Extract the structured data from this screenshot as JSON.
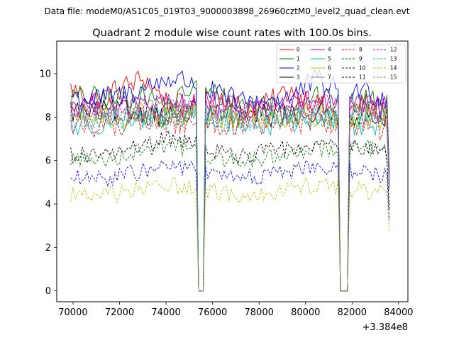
{
  "chart_data": {
    "type": "line",
    "supertitle": "Data file: modeM0/AS1C05_019T03_9000003898_26960cztM0_level2_quad_clean.evt",
    "title": "Quadrant 2 module wise count rates with 100.0s bins.",
    "xlabel": "",
    "ylabel": "",
    "x_offset_label": "+3.384e8",
    "xlim": [
      69300,
      84400
    ],
    "ylim": [
      -0.5,
      11.5
    ],
    "x_ticks": [
      70000,
      72000,
      74000,
      76000,
      78000,
      80000,
      82000,
      84000
    ],
    "x_tick_labels": [
      "70000",
      "72000",
      "74000",
      "76000",
      "78000",
      "80000",
      "82000",
      "84000"
    ],
    "y_ticks": [
      0,
      2,
      4,
      6,
      8,
      10
    ],
    "y_tick_labels": [
      "0",
      "2",
      "4",
      "6",
      "8",
      "10"
    ],
    "legend_location": "upper right",
    "legend_columns": 4,
    "time_start": 69900,
    "time_end": 83600,
    "bin_size": 100,
    "gaps": [
      [
        75300,
        75700
      ],
      [
        81400,
        81900
      ]
    ],
    "series": [
      {
        "name": "0",
        "color": "#ff0000",
        "style": "solid",
        "mean": 8.9,
        "trend": [
          9.3,
          8.8,
          9.3,
          9.8,
          8.6,
          8.5,
          9.1,
          8.4,
          8.6,
          9.3,
          8.6,
          8.0,
          8.6,
          8.2
        ]
      },
      {
        "name": "1",
        "color": "#008000",
        "style": "solid",
        "mean": 8.9,
        "trend": [
          8.9,
          8.9,
          8.8,
          9.0,
          8.5,
          9.4,
          9.0,
          8.6,
          8.6,
          8.5,
          9.1,
          8.5,
          8.8,
          8.6
        ]
      },
      {
        "name": "2",
        "color": "#0000ff",
        "style": "solid",
        "mean": 9.0,
        "trend": [
          9.0,
          8.8,
          9.0,
          9.3,
          9.8,
          9.6,
          9.0,
          8.7,
          8.8,
          8.9,
          9.7,
          9.2,
          9.2,
          8.8
        ]
      },
      {
        "name": "3",
        "color": "#000000",
        "style": "solid",
        "mean": 8.3,
        "trend": [
          8.3,
          8.2,
          8.3,
          8.2,
          8.0,
          8.2,
          8.1,
          8.0,
          8.1,
          8.1,
          8.2,
          8.0,
          8.2,
          8.1
        ]
      },
      {
        "name": "4",
        "color": "#bf00bf",
        "style": "solid",
        "mean": 8.5,
        "trend": [
          8.5,
          8.6,
          8.4,
          8.6,
          8.5,
          8.7,
          8.5,
          8.4,
          8.5,
          8.6,
          8.8,
          8.5,
          8.5,
          8.4
        ]
      },
      {
        "name": "5",
        "color": "#00bfbf",
        "style": "solid",
        "mean": 7.8,
        "trend": [
          7.5,
          7.7,
          7.9,
          7.8,
          8.0,
          8.2,
          7.9,
          7.6,
          7.7,
          7.8,
          7.9,
          7.8,
          7.6,
          7.8
        ]
      },
      {
        "name": "6",
        "color": "#bfbf00",
        "style": "solid",
        "mean": 8.0,
        "trend": [
          8.0,
          8.1,
          8.0,
          8.2,
          8.0,
          8.1,
          8.0,
          7.9,
          8.0,
          8.0,
          8.1,
          8.0,
          8.0,
          7.9
        ]
      },
      {
        "name": "7",
        "color": "#808080",
        "style": "solid",
        "mean": 8.2,
        "trend": [
          8.1,
          8.2,
          8.2,
          8.3,
          8.1,
          8.4,
          8.2,
          8.1,
          8.2,
          8.1,
          8.3,
          8.2,
          8.1,
          8.1
        ]
      },
      {
        "name": "8",
        "color": "#ff0000",
        "style": "dashed",
        "mean": 7.7,
        "trend": [
          7.6,
          7.6,
          7.7,
          7.8,
          7.6,
          7.9,
          7.7,
          7.5,
          7.6,
          7.7,
          7.8,
          7.6,
          7.6,
          7.4
        ]
      },
      {
        "name": "9",
        "color": "#008000",
        "style": "dashed",
        "mean": 6.2,
        "trend": [
          6.1,
          6.0,
          6.2,
          6.5,
          6.8,
          6.4,
          6.1,
          6.0,
          6.1,
          6.4,
          6.6,
          6.5,
          6.6,
          6.3
        ]
      },
      {
        "name": "10",
        "color": "#0000ff",
        "style": "dashed",
        "mean": 5.4,
        "trend": [
          5.2,
          5.1,
          5.3,
          5.5,
          5.8,
          5.6,
          5.3,
          5.2,
          5.3,
          5.5,
          5.8,
          5.6,
          5.5,
          5.3
        ]
      },
      {
        "name": "11",
        "color": "#000000",
        "style": "dashed",
        "mean": 6.3,
        "trend": [
          6.3,
          6.2,
          6.4,
          6.7,
          7.0,
          6.9,
          6.4,
          6.2,
          6.4,
          6.6,
          6.9,
          6.6,
          6.6,
          6.4
        ]
      },
      {
        "name": "12",
        "color": "#bf00bf",
        "style": "dashed",
        "mean": 8.4,
        "trend": [
          8.3,
          8.4,
          8.4,
          8.5,
          8.4,
          8.6,
          8.4,
          8.3,
          8.4,
          8.4,
          8.6,
          8.4,
          8.4,
          8.3
        ]
      },
      {
        "name": "13",
        "color": "#00bfbf",
        "style": "dashed",
        "mean": 7.9,
        "trend": [
          7.8,
          7.9,
          7.9,
          8.0,
          7.9,
          8.1,
          7.9,
          7.8,
          7.9,
          7.9,
          8.0,
          7.9,
          7.9,
          7.8
        ]
      },
      {
        "name": "14",
        "color": "#bfbf00",
        "style": "dashed",
        "mean": 4.5,
        "trend": [
          4.5,
          4.3,
          4.5,
          4.7,
          4.9,
          4.8,
          4.5,
          4.4,
          4.5,
          4.7,
          4.9,
          4.8,
          4.6,
          4.4
        ]
      },
      {
        "name": "15",
        "color": "#808080",
        "style": "dashed",
        "mean": 8.0,
        "trend": [
          7.9,
          8.0,
          8.0,
          8.1,
          8.0,
          8.2,
          8.0,
          7.9,
          8.0,
          8.0,
          8.1,
          8.0,
          8.0,
          7.9
        ]
      }
    ]
  }
}
